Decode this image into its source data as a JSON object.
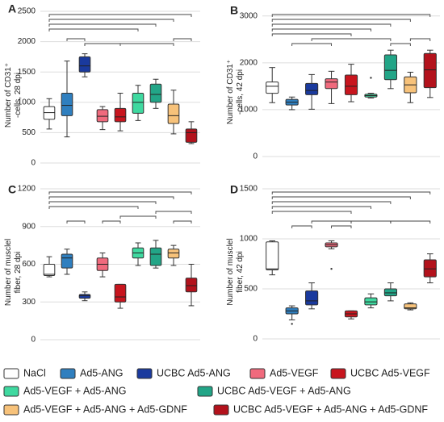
{
  "chart_data": [
    {
      "type": "box",
      "panel": "A",
      "ylabel": [
        "Number of CD31⁺",
        "-cells, 28 dpi"
      ],
      "ylim": [
        0,
        2500
      ],
      "yticks": [
        0,
        500,
        1000,
        1500,
        2000,
        2500
      ],
      "grid": true,
      "boxes": [
        {
          "min": 560,
          "q1": 720,
          "median": 830,
          "q3": 930,
          "max": 1060
        },
        {
          "min": 430,
          "q1": 780,
          "median": 950,
          "q3": 1150,
          "max": 1680
        },
        {
          "min": 1420,
          "q1": 1500,
          "median": 1600,
          "q3": 1750,
          "max": 1800
        },
        {
          "min": 550,
          "q1": 680,
          "median": 770,
          "q3": 880,
          "max": 930
        },
        {
          "min": 530,
          "q1": 680,
          "median": 760,
          "q3": 900,
          "max": 1150
        },
        {
          "min": 700,
          "q1": 820,
          "median": 1000,
          "q3": 1150,
          "max": 1280
        },
        {
          "min": 900,
          "q1": 1000,
          "median": 1130,
          "q3": 1300,
          "max": 1380
        },
        {
          "min": 480,
          "q1": 650,
          "median": 780,
          "q3": 970,
          "max": 1200
        },
        {
          "min": 320,
          "q1": 340,
          "median": 500,
          "q3": 560,
          "max": 680
        }
      ]
    },
    {
      "type": "box",
      "panel": "B",
      "ylabel": [
        "Number of CD31⁺",
        "-cells, 42 dpi"
      ],
      "ylim": [
        0,
        3100
      ],
      "yticks": [
        0,
        1000,
        2000,
        3000
      ],
      "grid": true,
      "boxes": [
        {
          "min": 1150,
          "q1": 1350,
          "median": 1500,
          "q3": 1590,
          "max": 1900
        },
        {
          "min": 1000,
          "q1": 1100,
          "median": 1160,
          "q3": 1220,
          "max": 1270
        },
        {
          "min": 1010,
          "q1": 1320,
          "median": 1410,
          "q3": 1560,
          "max": 1750
        },
        {
          "min": 1130,
          "q1": 1450,
          "median": 1590,
          "q3": 1660,
          "max": 1820
        },
        {
          "min": 1170,
          "q1": 1320,
          "median": 1500,
          "q3": 1740,
          "max": 1970
        },
        {
          "min": 1250,
          "q1": 1270,
          "median": 1300,
          "q3": 1330,
          "max": 1350,
          "outliers": [
            1680
          ]
        },
        {
          "min": 1450,
          "q1": 1640,
          "median": 1840,
          "q3": 2170,
          "max": 2270
        },
        {
          "min": 1150,
          "q1": 1360,
          "median": 1530,
          "q3": 1700,
          "max": 1800
        },
        {
          "min": 1260,
          "q1": 1470,
          "median": 1850,
          "q3": 2200,
          "max": 2270
        }
      ]
    },
    {
      "type": "box",
      "panel": "C",
      "ylabel": [
        "Number of musclel",
        "fiber, 28 dpi"
      ],
      "ylim": [
        0,
        1200
      ],
      "yticks": [
        0,
        300,
        600,
        900,
        1200
      ],
      "grid": true,
      "boxes": [
        {
          "min": 500,
          "q1": 510,
          "median": 520,
          "q3": 600,
          "max": 660
        },
        {
          "min": 520,
          "q1": 570,
          "median": 650,
          "q3": 680,
          "max": 720
        },
        {
          "min": 310,
          "q1": 330,
          "median": 350,
          "q3": 360,
          "max": 380
        },
        {
          "min": 500,
          "q1": 550,
          "median": 600,
          "q3": 650,
          "max": 690
        },
        {
          "min": 250,
          "q1": 300,
          "median": 340,
          "q3": 440,
          "max": 440
        },
        {
          "min": 590,
          "q1": 650,
          "median": 690,
          "q3": 730,
          "max": 770
        },
        {
          "min": 570,
          "q1": 590,
          "median": 680,
          "q3": 730,
          "max": 790
        },
        {
          "min": 590,
          "q1": 650,
          "median": 690,
          "q3": 720,
          "max": 750
        },
        {
          "min": 270,
          "q1": 380,
          "median": 430,
          "q3": 490,
          "max": 600
        }
      ]
    },
    {
      "type": "box",
      "panel": "D",
      "ylabel": [
        "Number of musclel",
        "fiber, 42 dpi"
      ],
      "ylim": [
        0,
        1500
      ],
      "yticks": [
        0,
        500,
        1000,
        1500
      ],
      "grid": true,
      "boxes": [
        {
          "min": 640,
          "q1": 690,
          "median": 700,
          "q3": 970,
          "max": 980
        },
        {
          "min": 190,
          "q1": 250,
          "median": 280,
          "q3": 310,
          "max": 330,
          "outliers": [
            150
          ]
        },
        {
          "min": 300,
          "q1": 340,
          "median": 380,
          "q3": 480,
          "max": 560
        },
        {
          "min": 900,
          "q1": 920,
          "median": 940,
          "q3": 960,
          "max": 980,
          "outliers": [
            700
          ]
        },
        {
          "min": 200,
          "q1": 220,
          "median": 250,
          "q3": 280,
          "max": 280
        },
        {
          "min": 310,
          "q1": 340,
          "median": 370,
          "q3": 410,
          "max": 450
        },
        {
          "min": 380,
          "q1": 430,
          "median": 460,
          "q3": 500,
          "max": 560
        },
        {
          "min": 290,
          "q1": 300,
          "median": 310,
          "q3": 350,
          "max": 360
        },
        {
          "min": 560,
          "q1": 620,
          "median": 700,
          "q3": 790,
          "max": 850
        }
      ]
    }
  ],
  "legend": [
    {
      "name": "NaCl",
      "color": "#ffffff"
    },
    {
      "name": "Ad5-ANG",
      "color": "#2f7fbf"
    },
    {
      "name": "UCBC Ad5-ANG",
      "color": "#1a3a9e"
    },
    {
      "name": "Ad5-VEGF",
      "color": "#f06a7d"
    },
    {
      "name": "UCBC Ad5-VEGF",
      "color": "#c8151e"
    },
    {
      "name": "Ad5-VEGF + Ad5-ANG",
      "color": "#3fd9a0"
    },
    {
      "name": "UCBC Ad5-VEGF + Ad5-ANG",
      "color": "#22a587"
    },
    {
      "name": "Ad5-VEGF + Ad5-ANG + Ad5-GDNF",
      "color": "#f7c27a"
    },
    {
      "name": "UCBC Ad5-VEGF + Ad5-ANG + Ad5-GDNF",
      "color": "#b3121c"
    }
  ]
}
